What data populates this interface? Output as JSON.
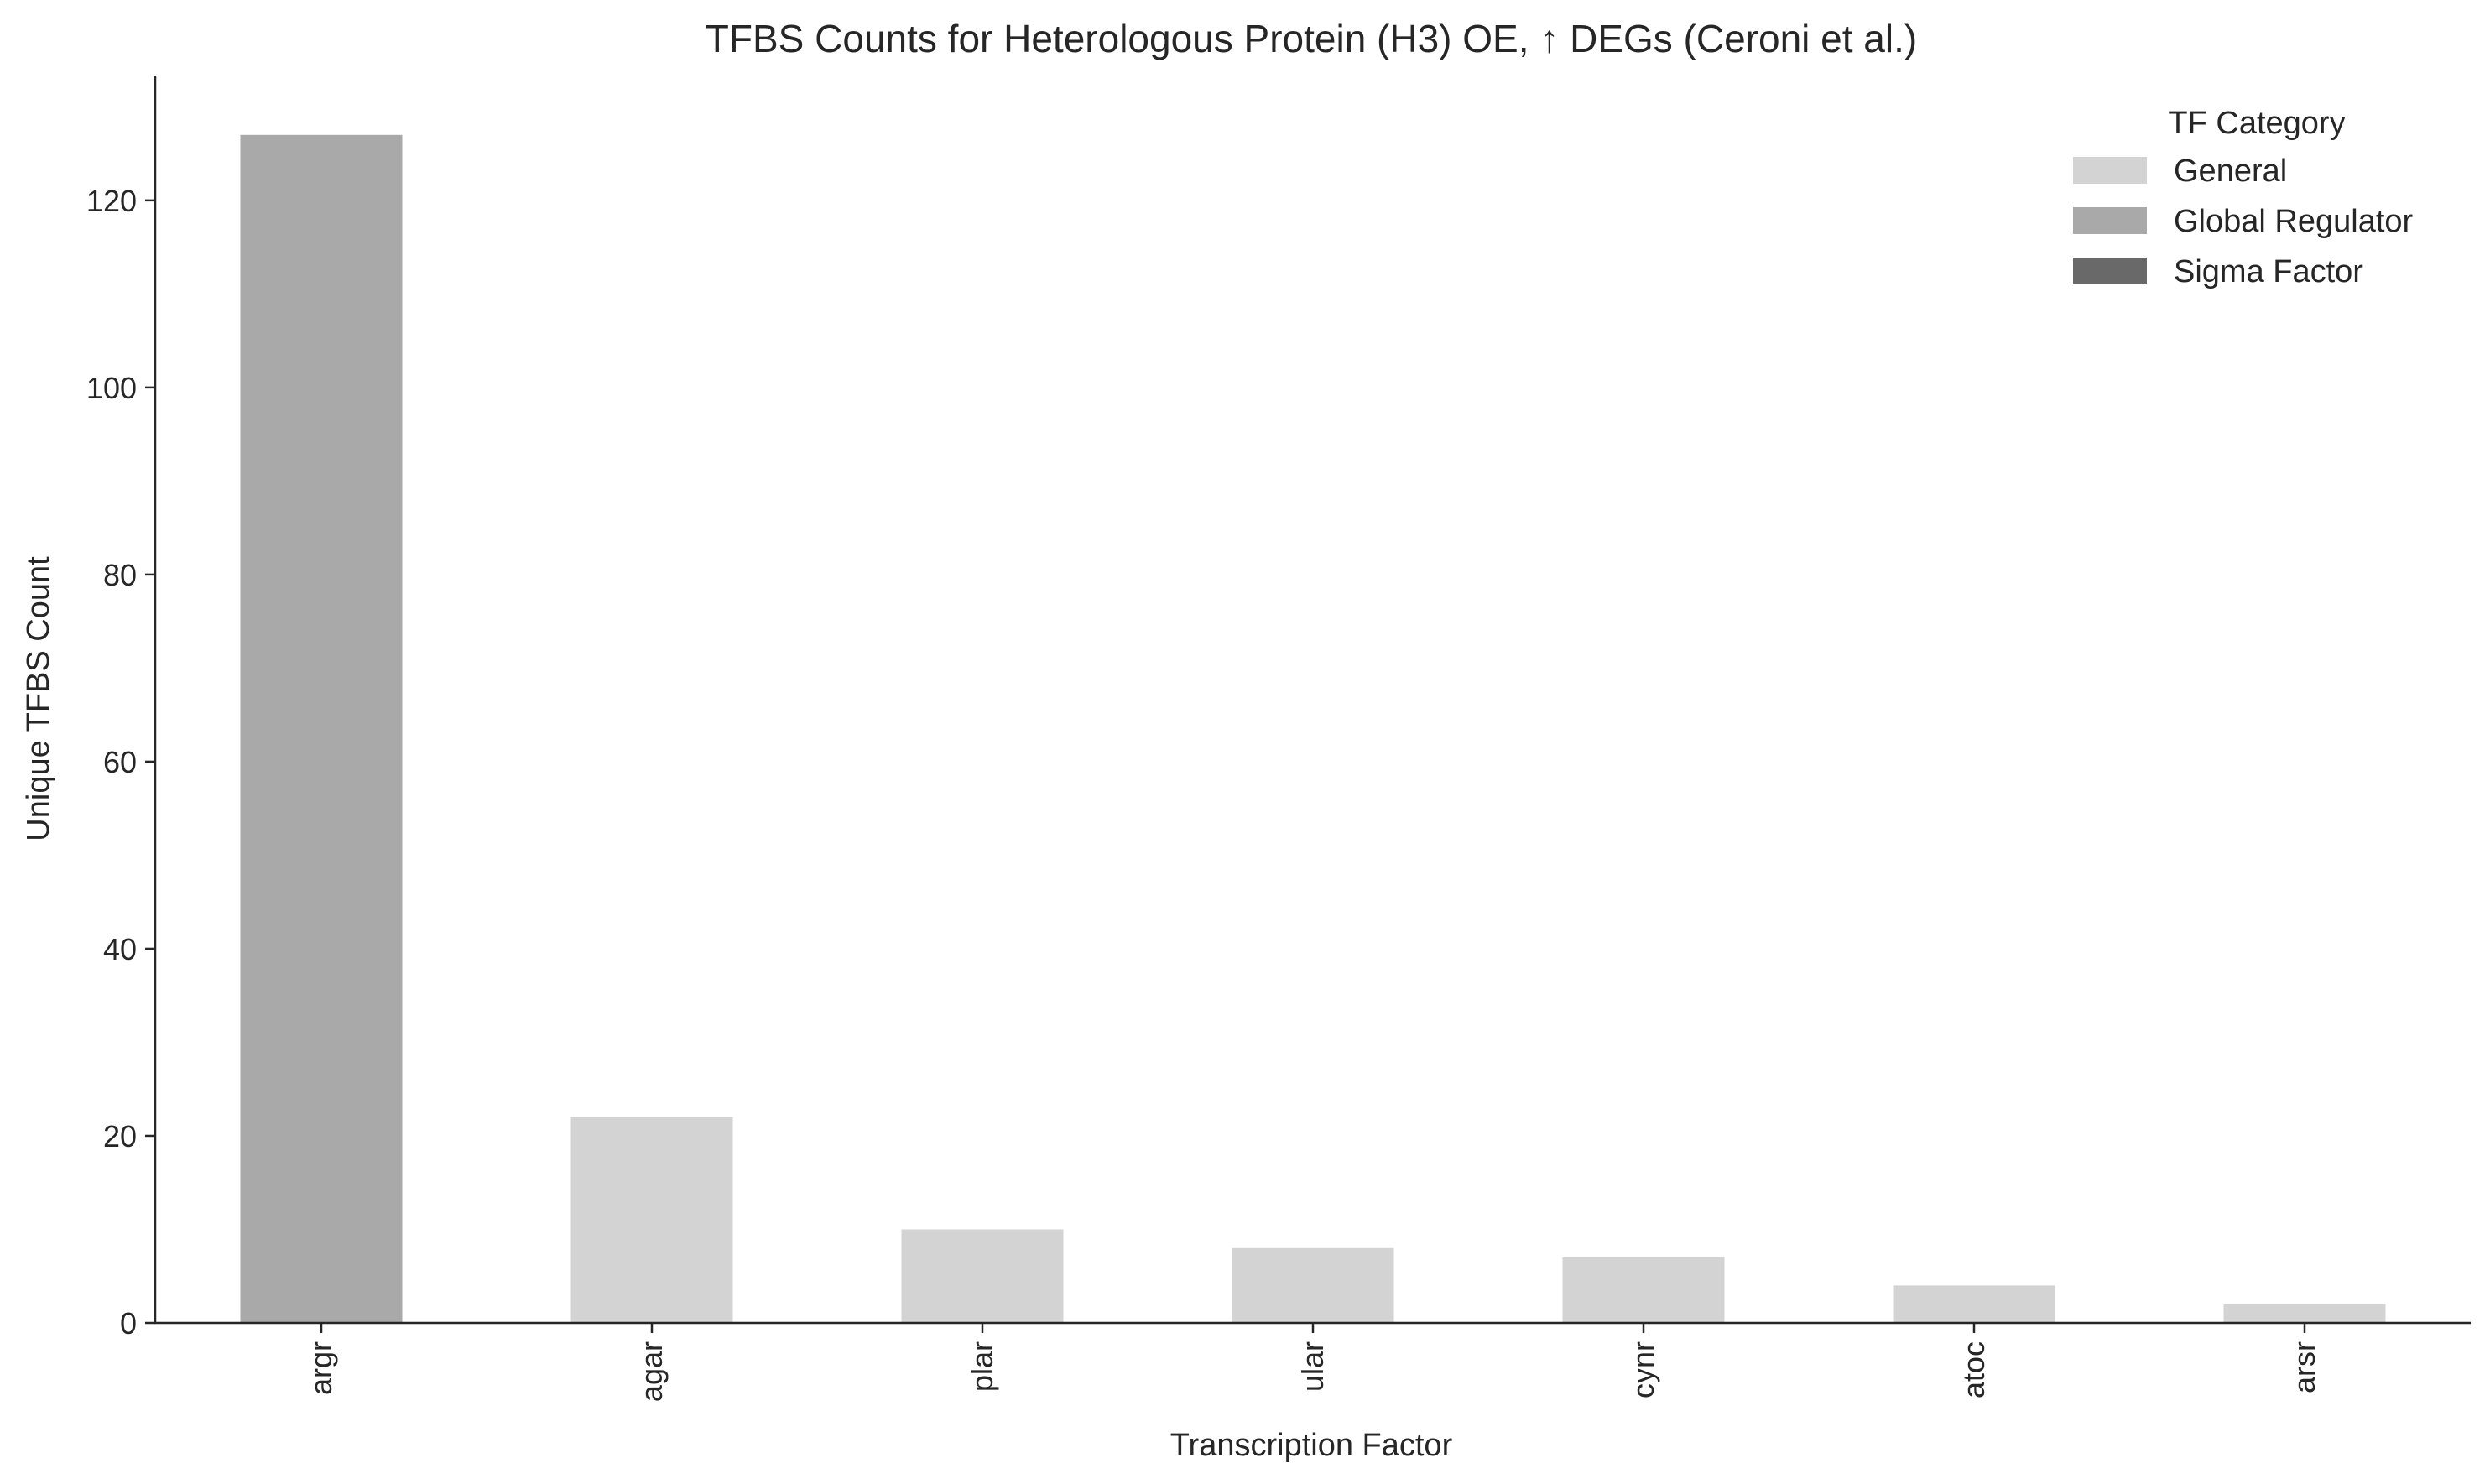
{
  "chart_data": {
    "type": "bar",
    "title": "TFBS Counts for Heterologous Protein (H3) OE, ↑ DEGs (Ceroni et al.)",
    "xlabel": "Transcription Factor",
    "ylabel": "Unique TFBS Count",
    "categories": [
      "argr",
      "agar",
      "plar",
      "ular",
      "cynr",
      "atoc",
      "arsr"
    ],
    "values": [
      127,
      22,
      10,
      8,
      7,
      4,
      2
    ],
    "bar_categories": [
      "Global Regulator",
      "General",
      "General",
      "General",
      "General",
      "General",
      "General"
    ],
    "ylim": [
      0,
      133.35
    ],
    "yticks": [
      0,
      20,
      40,
      60,
      80,
      100,
      120
    ],
    "grid": false,
    "legend": {
      "title": "TF Category",
      "position": "top-right",
      "entries": [
        {
          "label": "General",
          "color": "#d3d3d3"
        },
        {
          "label": "Global Regulator",
          "color": "#a9a9a9"
        },
        {
          "label": "Sigma Factor",
          "color": "#696969"
        }
      ]
    }
  }
}
